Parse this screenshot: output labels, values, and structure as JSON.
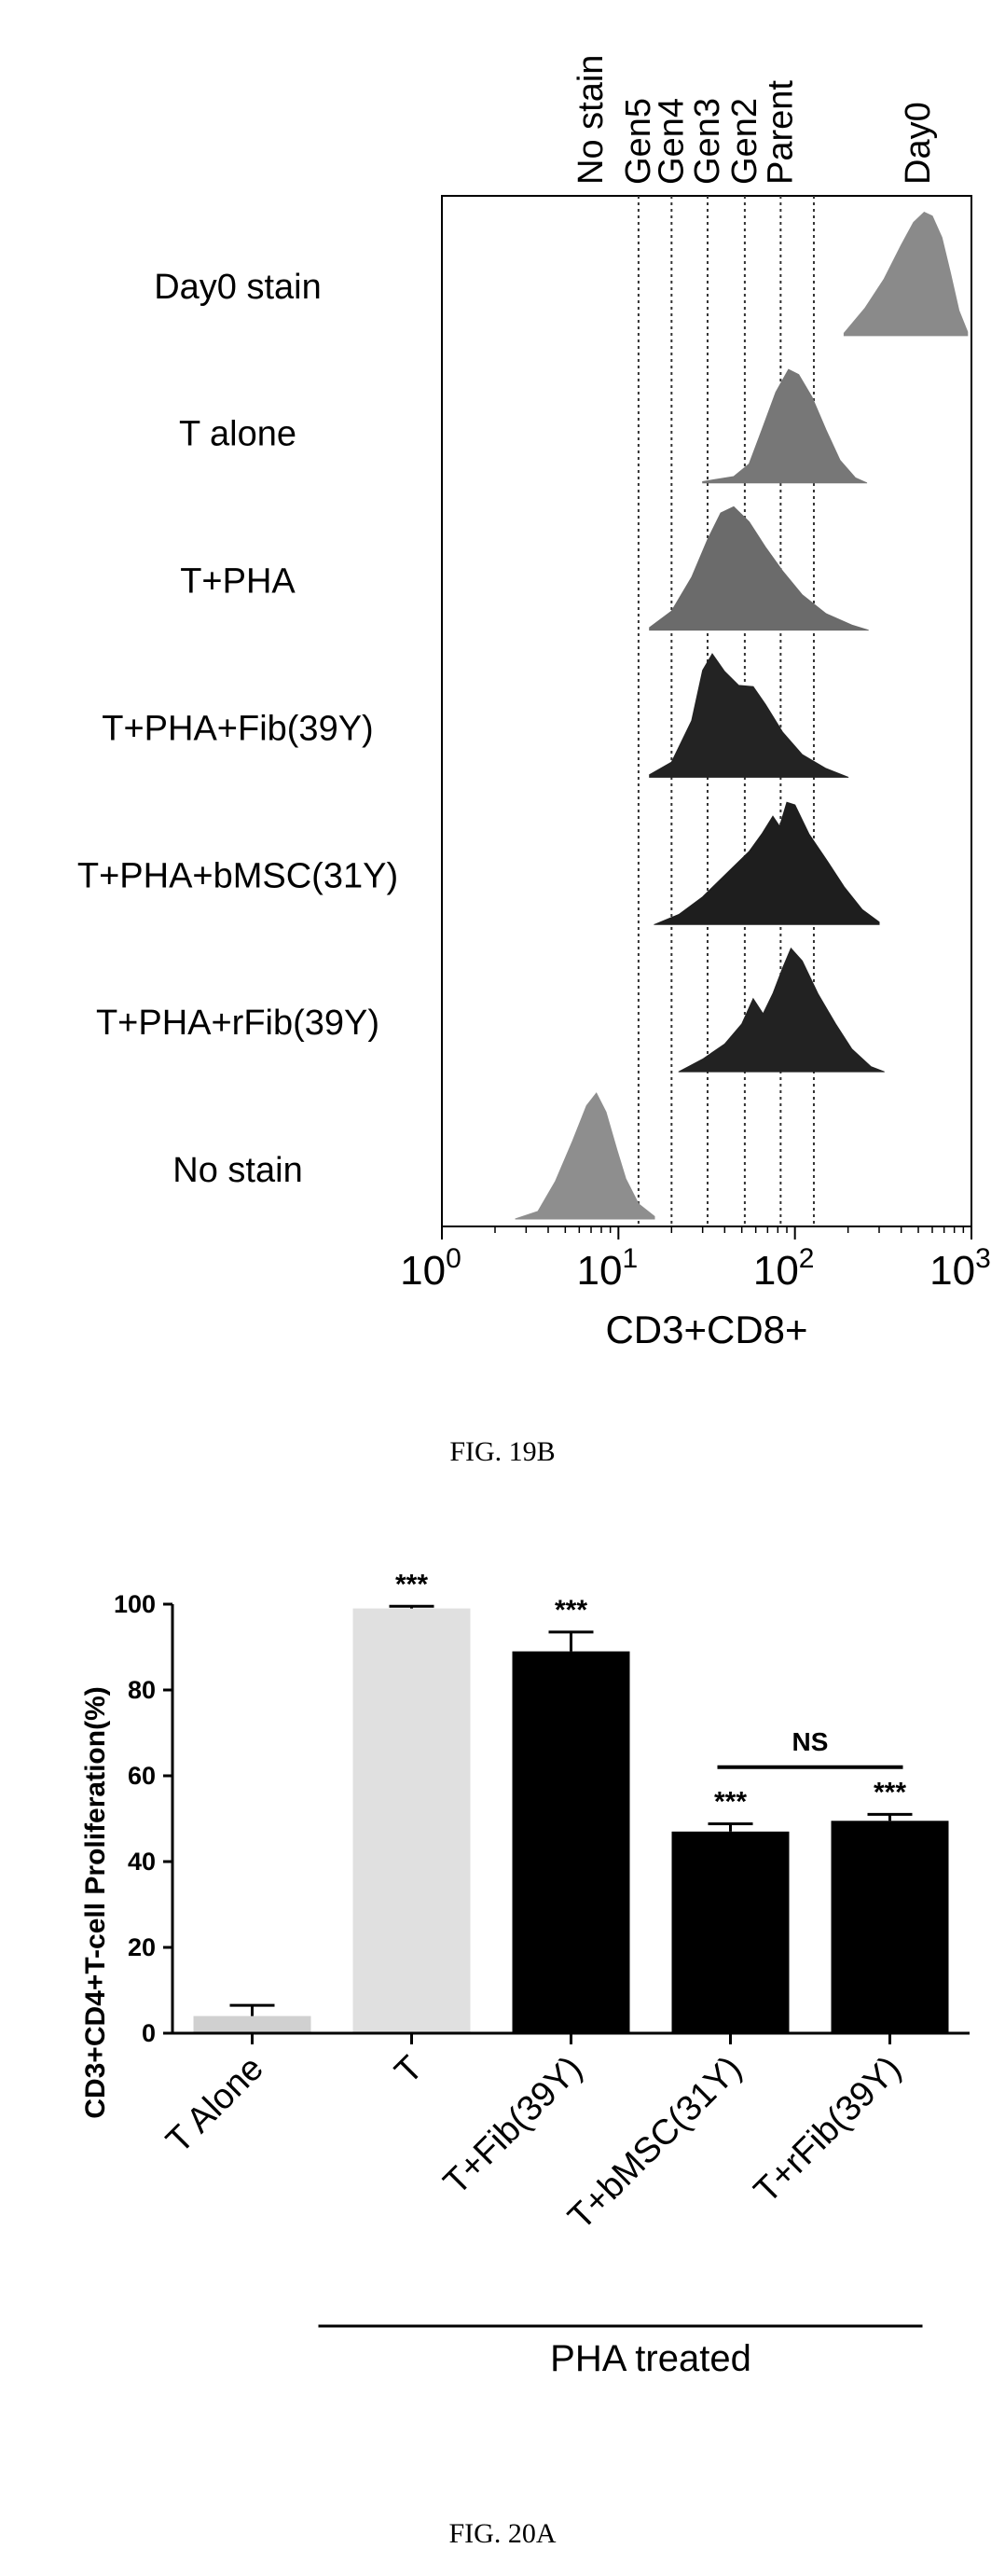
{
  "figures": [
    {
      "caption": "FIG. 19B",
      "chart_data": {
        "type": "area",
        "xscale": "log",
        "xlim": [
          1,
          1000
        ],
        "xticks": [
          {
            "value": 1,
            "base": "10",
            "exp": "0"
          },
          {
            "value": 10,
            "base": "10",
            "exp": "1"
          },
          {
            "value": 100,
            "base": "10",
            "exp": "2"
          },
          {
            "value": 1000,
            "base": "10",
            "exp": "3"
          }
        ],
        "xlabel": "CD3+CD8+",
        "top_labels": [
          {
            "label": "No stain",
            "x": 7
          },
          {
            "label": "Gen5",
            "x": 13,
            "line": true
          },
          {
            "label": "Gen4",
            "x": 20,
            "line": true
          },
          {
            "label": "Gen3",
            "x": 32,
            "line": true
          },
          {
            "label": "Gen2",
            "x": 52,
            "line": true
          },
          {
            "label": "Parent",
            "x": 83,
            "line": true
          },
          {
            "label": "Day0",
            "x": 500
          }
        ],
        "gate_lines": [
          13,
          20,
          32,
          52,
          83,
          128
        ],
        "series": [
          {
            "name": "Day0 stain",
            "color": "#8a8a8a",
            "points": [
              [
                190,
                0.02
              ],
              [
                250,
                0.22
              ],
              [
                320,
                0.45
              ],
              [
                400,
                0.72
              ],
              [
                470,
                0.9
              ],
              [
                540,
                0.98
              ],
              [
                600,
                0.95
              ],
              [
                680,
                0.78
              ],
              [
                760,
                0.5
              ],
              [
                850,
                0.2
              ],
              [
                950,
                0.03
              ]
            ]
          },
          {
            "name": "T alone",
            "color": "#777777",
            "points": [
              [
                30,
                0.01
              ],
              [
                45,
                0.05
              ],
              [
                55,
                0.15
              ],
              [
                65,
                0.42
              ],
              [
                78,
                0.72
              ],
              [
                92,
                0.9
              ],
              [
                105,
                0.86
              ],
              [
                125,
                0.68
              ],
              [
                150,
                0.42
              ],
              [
                180,
                0.18
              ],
              [
                220,
                0.04
              ],
              [
                255,
                0.0
              ]
            ]
          },
          {
            "name": "T+PHA",
            "color": "#6b6b6b",
            "points": [
              [
                15,
                0.02
              ],
              [
                20,
                0.15
              ],
              [
                26,
                0.42
              ],
              [
                32,
                0.72
              ],
              [
                38,
                0.93
              ],
              [
                45,
                0.98
              ],
              [
                55,
                0.86
              ],
              [
                68,
                0.66
              ],
              [
                85,
                0.47
              ],
              [
                110,
                0.28
              ],
              [
                150,
                0.13
              ],
              [
                210,
                0.04
              ],
              [
                260,
                0.0
              ]
            ]
          },
          {
            "name": "T+PHA+Fib(39Y)",
            "color": "#232323",
            "points": [
              [
                15,
                0.02
              ],
              [
                20,
                0.12
              ],
              [
                26,
                0.45
              ],
              [
                30,
                0.85
              ],
              [
                34,
                0.98
              ],
              [
                40,
                0.84
              ],
              [
                48,
                0.73
              ],
              [
                58,
                0.72
              ],
              [
                68,
                0.58
              ],
              [
                85,
                0.36
              ],
              [
                110,
                0.18
              ],
              [
                150,
                0.07
              ],
              [
                200,
                0.0
              ]
            ]
          },
          {
            "name": "T+PHA+bMSC(31Y)",
            "color": "#1e1e1e",
            "points": [
              [
                16,
                0.0
              ],
              [
                22,
                0.08
              ],
              [
                30,
                0.22
              ],
              [
                42,
                0.42
              ],
              [
                55,
                0.58
              ],
              [
                65,
                0.72
              ],
              [
                75,
                0.86
              ],
              [
                82,
                0.78
              ],
              [
                90,
                0.97
              ],
              [
                100,
                0.95
              ],
              [
                120,
                0.72
              ],
              [
                150,
                0.52
              ],
              [
                190,
                0.3
              ],
              [
                240,
                0.12
              ],
              [
                300,
                0.02
              ]
            ]
          },
          {
            "name": "T+PHA+rFib(39Y)",
            "color": "#222222",
            "points": [
              [
                22,
                0.0
              ],
              [
                30,
                0.1
              ],
              [
                40,
                0.22
              ],
              [
                50,
                0.38
              ],
              [
                58,
                0.58
              ],
              [
                66,
                0.46
              ],
              [
                75,
                0.62
              ],
              [
                85,
                0.82
              ],
              [
                95,
                0.98
              ],
              [
                110,
                0.88
              ],
              [
                135,
                0.62
              ],
              [
                170,
                0.38
              ],
              [
                210,
                0.18
              ],
              [
                270,
                0.04
              ],
              [
                320,
                0.0
              ]
            ]
          },
          {
            "name": "No stain",
            "color": "#8e8e8e",
            "points": [
              [
                2.6,
                0.0
              ],
              [
                3.5,
                0.06
              ],
              [
                4.4,
                0.3
              ],
              [
                5.5,
                0.62
              ],
              [
                6.6,
                0.9
              ],
              [
                7.5,
                1.0
              ],
              [
                8.5,
                0.85
              ],
              [
                9.8,
                0.55
              ],
              [
                11,
                0.32
              ],
              [
                13,
                0.12
              ],
              [
                16,
                0.02
              ]
            ]
          }
        ]
      }
    },
    {
      "caption": "FIG. 20A",
      "chart_data": {
        "type": "bar",
        "categories": [
          "T Alone",
          "T",
          "T+Fib(39Y)",
          "T+bMSC(31Y)",
          "T+rFib(39Y)"
        ],
        "values": [
          4,
          99,
          89,
          47,
          49.5
        ],
        "errors": [
          2.5,
          0.5,
          4.5,
          1.8,
          1.5
        ],
        "colors": [
          "#d0d0d0",
          "#e0e0e0",
          "#000000",
          "#000000",
          "#000000"
        ],
        "significance": [
          "",
          "***",
          "***",
          "***",
          "***"
        ],
        "ylabel": "CD3+CD4+T-cell Proliferation(%)",
        "ylim": [
          0,
          100
        ],
        "yticks": [
          0,
          20,
          40,
          60,
          80,
          100
        ],
        "ns_bracket": {
          "from": 3,
          "to": 4,
          "label": "NS"
        },
        "group": {
          "from": 1,
          "to": 4,
          "label": "PHA treated"
        }
      }
    }
  ]
}
